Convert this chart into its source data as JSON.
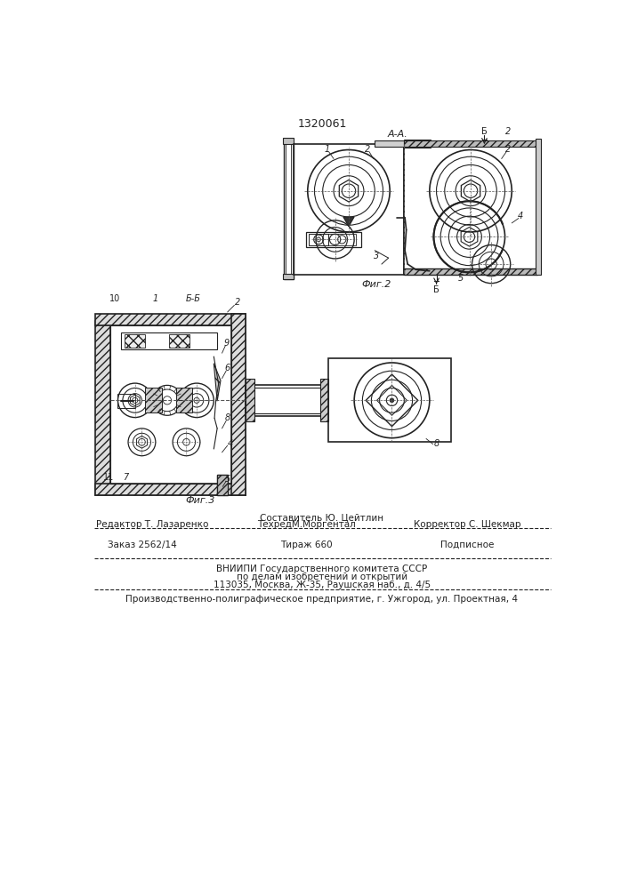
{
  "patent_number": "1320061",
  "fig2_label": "Фиг.2",
  "fig3_label": "Фиг.3",
  "section_aa": "А-А.",
  "section_bb": "Б-Б",
  "line1_author": "Составитель Ю. Цейтлин",
  "line2_editor": "Редактор Т. Лазаренко",
  "line2_techred": "ТехредМ.Моргентал",
  "line2_corrector": "Корректор С. Шекмар",
  "line3_order": "Заказ 2562/14",
  "line3_tirazh": "Тираж 660",
  "line3_podpisnoe": "Подписное",
  "line4": "ВНИИПИ Государственного комитета СССР",
  "line5": "по делам изобретений и открытий",
  "line6": "113035, Москва, Ж-35, Раушская наб., д. 4/5",
  "line7": "Производственно-полиграфическое предприятие, г. Ужгород, ул. Проектная, 4",
  "bg_color": "#f5f5f0",
  "line_color": "#222222",
  "hatch_color": "#888888"
}
